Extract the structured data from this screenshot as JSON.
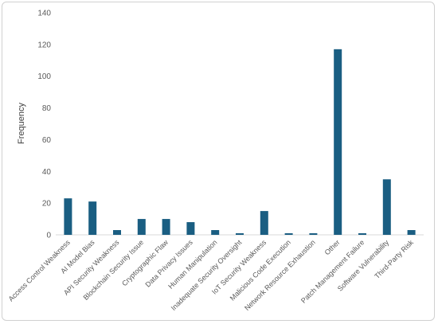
{
  "chart_data": {
    "type": "bar",
    "title": "",
    "xlabel": "",
    "ylabel": "Frequency",
    "ylim": [
      0,
      140
    ],
    "yticks": [
      0,
      20,
      40,
      60,
      80,
      100,
      120,
      140
    ],
    "grid": false,
    "legend": "none",
    "bar_color": "#1a5e82",
    "categories": [
      "Access Control Weakness",
      "AI Model Bias",
      "API Security Weakness",
      "Blockchain Security Issue",
      "Cryptographic Flaw",
      "Data Privacy Issues",
      "Human Manipulation",
      "Inadequate Security Oversight",
      "IoT Security Weakness",
      "Malicious Code Execution",
      "Network Resource Exhaustion",
      "Other",
      "Patch Management Failure",
      "Software Vulnerability",
      "Third-Party Risk"
    ],
    "values": [
      23,
      21,
      3,
      10,
      10,
      8,
      3,
      1,
      15,
      1,
      1,
      117,
      1,
      35,
      3
    ]
  }
}
